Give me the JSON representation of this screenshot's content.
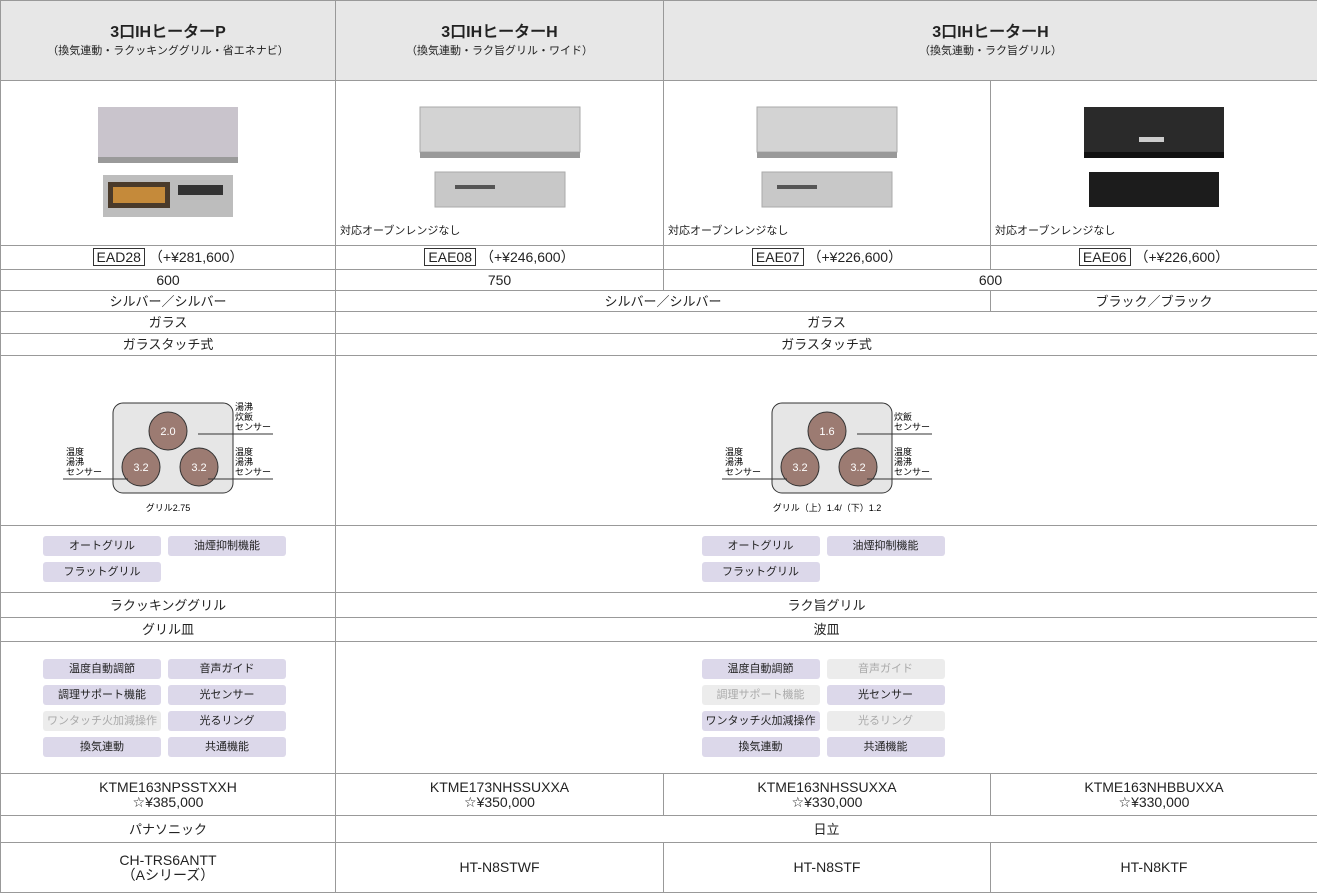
{
  "header": [
    {
      "title": "3口IHヒーターP",
      "subtitle": "（換気連動・ラクッキンググリル・省エネナビ）"
    },
    {
      "title": "3口IHヒーターH",
      "subtitle": "（換気連動・ラク旨グリル・ワイド）"
    },
    {
      "title": "3口IHヒーターH",
      "subtitle": "（換気連動・ラク旨グリル）"
    }
  ],
  "oven_note": [
    "対応オーブンレンジなし",
    "対応オーブンレンジなし",
    "対応オーブンレンジなし"
  ],
  "oven": [
    {
      "code": "EAD28",
      "price": "（+¥281,600）"
    },
    {
      "code": "EAE08",
      "price": "（+¥246,600）"
    },
    {
      "code": "EAE07",
      "price": "（+¥226,600）"
    },
    {
      "code": "EAE06",
      "price": "（+¥226,600）"
    }
  ],
  "width": [
    "600",
    "750",
    "600"
  ],
  "color": [
    "シルバー／シルバー",
    "シルバー／シルバー",
    "ブラック／ブラック"
  ],
  "top_plate": [
    "ガラス",
    "ガラス"
  ],
  "operation": [
    "ガラスタッチ式",
    "ガラスタッチ式"
  ],
  "burners": [
    {
      "top": "2.0",
      "left": "3.2",
      "right": "3.2",
      "top_sensor": [
        "湯沸",
        "炊飯",
        "センサー"
      ],
      "left_sensor": [
        "温度",
        "湯沸",
        "センサー"
      ],
      "right_sensor": [
        "温度",
        "湯沸",
        "センサー"
      ],
      "grill": "グリル2.75"
    },
    {
      "top": "1.6",
      "left": "3.2",
      "right": "3.2",
      "top_sensor": [
        "炊飯",
        "センサー"
      ],
      "left_sensor": [
        "温度",
        "湯沸",
        "センサー"
      ],
      "right_sensor": [
        "温度",
        "湯沸",
        "センサー"
      ],
      "grill": "グリル（上）1.4/（下）1.2"
    }
  ],
  "grill_features": [
    [
      "オートグリル",
      "油煙抑制機能",
      "フラットグリル"
    ],
    [
      "オートグリル",
      "油煙抑制機能",
      "フラットグリル"
    ]
  ],
  "grill_name": [
    "ラクッキンググリル",
    "ラク旨グリル"
  ],
  "grill_pan": [
    "グリル皿",
    "波皿"
  ],
  "features": [
    [
      {
        "label": "温度自動調節",
        "dim": false
      },
      {
        "label": "音声ガイド",
        "dim": false
      },
      {
        "label": "調理サポート機能",
        "dim": false
      },
      {
        "label": "光センサー",
        "dim": false
      },
      {
        "label": "ワンタッチ火加減操作",
        "dim": true
      },
      {
        "label": "光るリング",
        "dim": false
      },
      {
        "label": "換気連動",
        "dim": false
      },
      {
        "label": "共通機能",
        "dim": false
      }
    ],
    [
      {
        "label": "温度自動調節",
        "dim": false
      },
      {
        "label": "音声ガイド",
        "dim": true
      },
      {
        "label": "調理サポート機能",
        "dim": true
      },
      {
        "label": "光センサー",
        "dim": false
      },
      {
        "label": "ワンタッチ火加減操作",
        "dim": false
      },
      {
        "label": "光るリング",
        "dim": true
      },
      {
        "label": "換気連動",
        "dim": false
      },
      {
        "label": "共通機能",
        "dim": false
      }
    ]
  ],
  "models": [
    {
      "model": "KTME163NPSSTXXH",
      "price": "☆¥385,000"
    },
    {
      "model": "KTME173NHSSUXXA",
      "price": "☆¥350,000"
    },
    {
      "model": "KTME163NHSSUXXA",
      "price": "☆¥330,000"
    },
    {
      "model": "KTME163NHBBUXXA",
      "price": "☆¥330,000"
    }
  ],
  "maker": [
    "パナソニック",
    "日立"
  ],
  "hood": [
    [
      "CH-TRS6ANTT",
      "（Aシリーズ）"
    ],
    [
      "HT-N8STWF"
    ],
    [
      "HT-N8STF"
    ],
    [
      "HT-N8KTF"
    ]
  ]
}
